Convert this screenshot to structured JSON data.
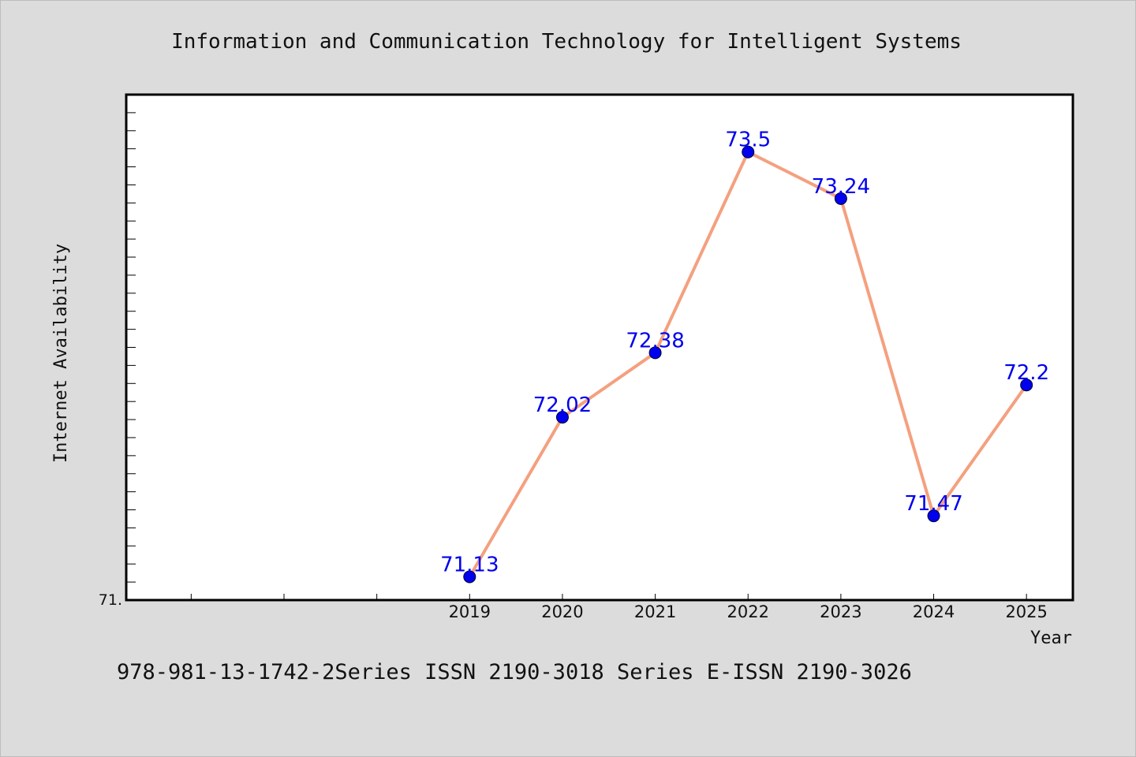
{
  "chart_data": {
    "type": "line",
    "title": "Information and Communication Technology for Intelligent Systems",
    "xlabel": "Year",
    "ylabel": "Internet Availability",
    "categories": [
      "2019",
      "2020",
      "2021",
      "2022",
      "2023",
      "2024",
      "2025"
    ],
    "series": [
      {
        "values": [
          71.13,
          72.02,
          72.38,
          73.5,
          73.24,
          71.47,
          72.2
        ],
        "line_color": "#f4a07f",
        "marker_color": "#0000ee"
      }
    ],
    "data_labels": [
      "71.13",
      "72.02",
      "72.38",
      "73.5",
      "73.24",
      "71.47",
      "72.2"
    ],
    "y_tick_label": "71.",
    "ylim": [
      71.0,
      73.82
    ],
    "x_range_years": [
      2015.3,
      2025.5
    ],
    "grid": false,
    "legend": "none",
    "footer": "978-981-13-1742-2Series ISSN 2190-3018 Series E-ISSN 2190-3026"
  },
  "colors": {
    "background": "#dcdcdc",
    "plot_background": "#ffffff",
    "label_text": "#0000ee"
  }
}
